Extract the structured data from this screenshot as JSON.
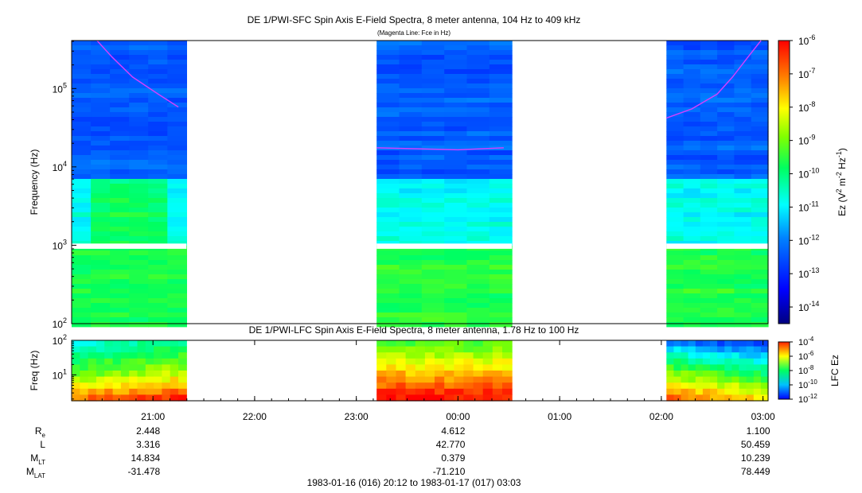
{
  "chart_data": [
    {
      "type": "heatmap",
      "title": "DE 1/PWI-SFC  Spin Axis E-Field Spectra, 8 meter antenna, 104 Hz to 409 kHz",
      "subtitle": "(Magenta Line: Fce in Hz)",
      "ylabel": "Frequency (Hz)",
      "yscale": "log",
      "ylim": [
        100,
        409000
      ],
      "y_ticks": [
        {
          "value": 100,
          "base": "10",
          "exp": "2"
        },
        {
          "value": 1000,
          "base": "10",
          "exp": "3"
        },
        {
          "value": 10000,
          "base": "10",
          "exp": "4"
        },
        {
          "value": 100000,
          "base": "10",
          "exp": "5"
        }
      ],
      "xlim_hours_since_20": [
        0.2,
        7.05
      ],
      "data_intervals_hours_since_20": [
        [
          0.2,
          1.33
        ],
        [
          3.2,
          4.53
        ],
        [
          6.05,
          7.05
        ]
      ],
      "missing_band_hz": [
        900,
        1050
      ],
      "fce_line_hz": [
        {
          "t": 0.45,
          "f": 409000
        },
        {
          "t": 0.6,
          "f": 250000
        },
        {
          "t": 0.8,
          "f": 140000
        },
        {
          "t": 1.05,
          "f": 85000
        },
        {
          "t": 1.25,
          "f": 58000
        },
        {
          "t": 3.2,
          "f": 17500
        },
        {
          "t": 3.6,
          "f": 17000
        },
        {
          "t": 4.0,
          "f": 16500
        },
        {
          "t": 4.45,
          "f": 17500
        },
        {
          "t": 6.05,
          "f": 42000
        },
        {
          "t": 6.3,
          "f": 55000
        },
        {
          "t": 6.55,
          "f": 85000
        },
        {
          "t": 6.7,
          "f": 140000
        },
        {
          "t": 6.85,
          "f": 250000
        },
        {
          "t": 6.98,
          "f": 409000
        }
      ],
      "colorbar": {
        "label_main": "Ez (V",
        "label_sup1": "2",
        "label_mid": " m",
        "label_sup2": "-2",
        "label_mid2": " Hz",
        "label_sup3": "-1",
        "label_end": ")",
        "range_log10": [
          -14.5,
          -6
        ],
        "ticks": [
          {
            "value": -6,
            "base": "10",
            "exp": "-6"
          },
          {
            "value": -7,
            "base": "10",
            "exp": "-7"
          },
          {
            "value": -8,
            "base": "10",
            "exp": "-8"
          },
          {
            "value": -9,
            "base": "10",
            "exp": "-9"
          },
          {
            "value": -10,
            "base": "10",
            "exp": "-10"
          },
          {
            "value": -11,
            "base": "10",
            "exp": "-11"
          },
          {
            "value": -12,
            "base": "10",
            "exp": "-12"
          },
          {
            "value": -13,
            "base": "10",
            "exp": "-13"
          },
          {
            "value": -14,
            "base": "10",
            "exp": "-14"
          }
        ]
      }
    },
    {
      "type": "heatmap",
      "title": "DE 1/PWI-LFC  Spin Axis E-Field Spectra, 8 meter antenna, 1.78 Hz to 100 Hz",
      "ylabel": "Freq (Hz)",
      "yscale": "log",
      "ylim": [
        1.78,
        100
      ],
      "y_ticks": [
        {
          "value": 10,
          "base": "10",
          "exp": "1"
        },
        {
          "value": 100,
          "base": "10",
          "exp": "2"
        }
      ],
      "data_intervals_hours_since_20": [
        [
          0.2,
          1.33
        ],
        [
          3.2,
          4.53
        ],
        [
          6.05,
          7.05
        ]
      ],
      "colorbar": {
        "label": "LFC Ez",
        "range_log10": [
          -12,
          -4
        ],
        "ticks": [
          {
            "value": -4,
            "base": "10",
            "exp": "-4"
          },
          {
            "value": -6,
            "base": "10",
            "exp": "-6"
          },
          {
            "value": -8,
            "base": "10",
            "exp": "-8"
          },
          {
            "value": -10,
            "base": "10",
            "exp": "-10"
          },
          {
            "value": -12,
            "base": "10",
            "exp": "-12"
          }
        ]
      }
    }
  ],
  "x_axis": {
    "tick_labels": [
      {
        "hours": 1,
        "label": "21:00"
      },
      {
        "hours": 2,
        "label": "22:00"
      },
      {
        "hours": 3,
        "label": "23:00"
      },
      {
        "hours": 4,
        "label": "00:00"
      },
      {
        "hours": 5,
        "label": "01:00"
      },
      {
        "hours": 6,
        "label": "02:00"
      },
      {
        "hours": 7,
        "label": "03:00"
      }
    ],
    "ephemeris": [
      {
        "name": "R",
        "sub": "e",
        "values": [
          "2.448",
          "4.612",
          "1.100"
        ]
      },
      {
        "name": "L",
        "sub": "",
        "values": [
          "3.316",
          "42.770",
          "50.459"
        ]
      },
      {
        "name": "M",
        "sub": "LT",
        "values": [
          "14.834",
          "0.379",
          "10.239"
        ]
      },
      {
        "name": "M",
        "sub": "LAT",
        "values": [
          "-31.478",
          "-71.210",
          "78.449"
        ]
      }
    ],
    "ephemeris_column_hours": [
      1,
      4,
      7
    ],
    "time_range": "1983-01-16 (016) 20:12 to 1983-01-17 (017) 03:03"
  }
}
